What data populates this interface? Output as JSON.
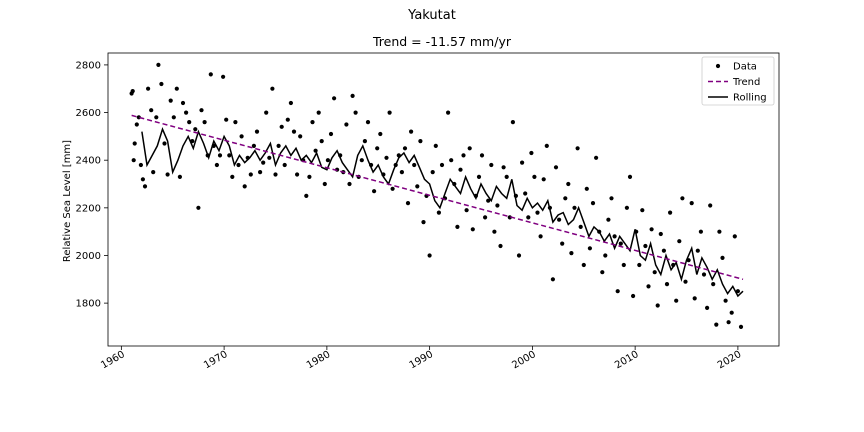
{
  "chart_data": {
    "type": "scatter",
    "suptitle": "Yakutat",
    "title": "Trend = -11.57 mm/yr",
    "xlabel": "",
    "ylabel": "Relative Sea Level [mm]",
    "xlim": [
      1958.7,
      2024.0
    ],
    "ylim": [
      1620,
      2850
    ],
    "xticks": [
      1960,
      1970,
      1980,
      1990,
      2000,
      2010,
      2020
    ],
    "xtick_labels": [
      "1960",
      "1970",
      "1980",
      "1990",
      "2000",
      "2010",
      "2020"
    ],
    "yticks": [
      1800,
      2000,
      2200,
      2400,
      2600,
      2800
    ],
    "ytick_labels": [
      "1800",
      "2000",
      "2200",
      "2400",
      "2600",
      "2800"
    ],
    "legend_position": "top-right",
    "series": [
      {
        "name": "Data",
        "kind": "points",
        "color": "#000000",
        "x": [
          1961.0,
          1961.1,
          1961.2,
          1961.3,
          1961.5,
          1961.7,
          1961.9,
          1962.1,
          1962.3,
          1962.6,
          1962.9,
          1963.1,
          1963.4,
          1963.6,
          1963.9,
          1964.2,
          1964.5,
          1964.8,
          1965.1,
          1965.4,
          1965.7,
          1966.0,
          1966.3,
          1966.6,
          1966.9,
          1967.2,
          1967.5,
          1967.8,
          1968.1,
          1968.4,
          1968.7,
          1969.0,
          1969.3,
          1969.6,
          1969.9,
          1970.2,
          1970.5,
          1970.8,
          1971.1,
          1971.4,
          1971.7,
          1972.0,
          1972.3,
          1972.6,
          1972.9,
          1973.2,
          1973.5,
          1973.8,
          1974.1,
          1974.4,
          1974.7,
          1975.0,
          1975.3,
          1975.6,
          1975.9,
          1976.2,
          1976.5,
          1976.8,
          1977.1,
          1977.4,
          1977.7,
          1978.0,
          1978.3,
          1978.6,
          1978.9,
          1979.2,
          1979.5,
          1979.8,
          1980.1,
          1980.4,
          1980.7,
          1981.0,
          1981.3,
          1981.6,
          1981.9,
          1982.2,
          1982.5,
          1982.8,
          1983.1,
          1983.4,
          1983.7,
          1984.0,
          1984.3,
          1984.6,
          1984.9,
          1985.2,
          1985.5,
          1985.8,
          1986.1,
          1986.4,
          1986.7,
          1987.0,
          1987.3,
          1987.6,
          1987.9,
          1988.2,
          1988.5,
          1988.8,
          1989.1,
          1989.4,
          1989.7,
          1990.0,
          1990.3,
          1990.6,
          1990.9,
          1991.2,
          1991.5,
          1991.8,
          1992.1,
          1992.4,
          1992.7,
          1993.0,
          1993.3,
          1993.6,
          1993.9,
          1994.2,
          1994.5,
          1994.8,
          1995.1,
          1995.4,
          1995.7,
          1996.0,
          1996.3,
          1996.6,
          1996.9,
          1997.2,
          1997.5,
          1997.8,
          1998.1,
          1998.4,
          1998.7,
          1999.0,
          1999.3,
          1999.6,
          1999.9,
          2000.2,
          2000.5,
          2000.8,
          2001.1,
          2001.4,
          2001.7,
          2002.0,
          2002.3,
          2002.6,
          2002.9,
          2003.2,
          2003.5,
          2003.8,
          2004.1,
          2004.4,
          2004.7,
          2005.0,
          2005.3,
          2005.6,
          2005.9,
          2006.2,
          2006.5,
          2006.8,
          2007.1,
          2007.4,
          2007.7,
          2008.0,
          2008.3,
          2008.6,
          2008.9,
          2009.2,
          2009.5,
          2009.8,
          2010.1,
          2010.4,
          2010.7,
          2011.0,
          2011.3,
          2011.6,
          2011.9,
          2012.2,
          2012.5,
          2012.8,
          2013.1,
          2013.4,
          2013.7,
          2014.0,
          2014.3,
          2014.6,
          2014.9,
          2015.2,
          2015.5,
          2015.8,
          2016.1,
          2016.4,
          2016.7,
          2017.0,
          2017.3,
          2017.6,
          2017.9,
          2018.2,
          2018.5,
          2018.8,
          2019.1,
          2019.4,
          2019.7,
          2020.0,
          2020.3
        ],
        "y": [
          2680,
          2690,
          2400,
          2470,
          2550,
          2580,
          2380,
          2320,
          2290,
          2700,
          2610,
          2350,
          2580,
          2800,
          2720,
          2470,
          2340,
          2650,
          2580,
          2700,
          2330,
          2640,
          2600,
          2560,
          2480,
          2530,
          2200,
          2610,
          2560,
          2420,
          2760,
          2460,
          2380,
          2420,
          2750,
          2570,
          2420,
          2330,
          2560,
          2380,
          2500,
          2290,
          2410,
          2340,
          2460,
          2520,
          2350,
          2390,
          2600,
          2410,
          2700,
          2340,
          2460,
          2540,
          2380,
          2570,
          2640,
          2520,
          2340,
          2500,
          2400,
          2250,
          2330,
          2560,
          2440,
          2600,
          2480,
          2300,
          2400,
          2510,
          2660,
          2360,
          2420,
          2350,
          2550,
          2300,
          2670,
          2600,
          2330,
          2400,
          2480,
          2560,
          2380,
          2270,
          2450,
          2510,
          2340,
          2410,
          2600,
          2280,
          2380,
          2420,
          2350,
          2450,
          2220,
          2520,
          2380,
          2290,
          2480,
          2140,
          2250,
          2000,
          2350,
          2460,
          2180,
          2380,
          2240,
          2600,
          2400,
          2300,
          2120,
          2360,
          2420,
          2190,
          2450,
          2110,
          2250,
          2330,
          2420,
          2160,
          2230,
          2380,
          2100,
          2210,
          2040,
          2370,
          2330,
          2160,
          2560,
          2250,
          2000,
          2390,
          2260,
          2160,
          2430,
          2330,
          2180,
          2080,
          2320,
          2460,
          2200,
          1900,
          2370,
          2150,
          2050,
          2240,
          2300,
          2010,
          2200,
          2450,
          2120,
          1960,
          2280,
          2030,
          2220,
          2410,
          2100,
          1930,
          2000,
          2150,
          2240,
          2080,
          1850,
          2050,
          1960,
          2200,
          2330,
          1830,
          2100,
          1960,
          2190,
          2040,
          1870,
          2110,
          1930,
          1790,
          2090,
          2020,
          1880,
          2180,
          1960,
          1810,
          2060,
          2240,
          1890,
          1980,
          2220,
          1820,
          2020,
          2100,
          1920,
          1780,
          2210,
          1880,
          1710,
          2100,
          1990,
          1810,
          1720,
          1760,
          2080,
          1850,
          1700
        ]
      },
      {
        "name": "Trend",
        "kind": "line",
        "color": "#800080",
        "dashed": true,
        "x": [
          1961.0,
          2020.5
        ],
        "y": [
          2588,
          1900
        ]
      },
      {
        "name": "Rolling",
        "kind": "line",
        "color": "#000000",
        "x": [
          1962.0,
          1962.5,
          1963.0,
          1963.5,
          1964.0,
          1964.5,
          1965.0,
          1965.5,
          1966.0,
          1966.5,
          1967.0,
          1967.5,
          1968.0,
          1968.5,
          1969.0,
          1969.5,
          1970.0,
          1970.5,
          1971.0,
          1971.5,
          1972.0,
          1972.5,
          1973.0,
          1973.5,
          1974.0,
          1974.5,
          1975.0,
          1975.5,
          1976.0,
          1976.5,
          1977.0,
          1977.5,
          1978.0,
          1978.5,
          1979.0,
          1979.5,
          1980.0,
          1980.5,
          1981.0,
          1981.5,
          1982.0,
          1982.5,
          1983.0,
          1983.5,
          1984.0,
          1984.5,
          1985.0,
          1985.5,
          1986.0,
          1986.5,
          1987.0,
          1987.5,
          1988.0,
          1988.5,
          1989.0,
          1989.5,
          1990.0,
          1990.5,
          1991.0,
          1991.5,
          1992.0,
          1992.5,
          1993.0,
          1993.5,
          1994.0,
          1994.5,
          1995.0,
          1995.5,
          1996.0,
          1996.5,
          1997.0,
          1997.5,
          1998.0,
          1998.5,
          1999.0,
          1999.5,
          2000.0,
          2000.5,
          2001.0,
          2001.5,
          2002.0,
          2002.5,
          2003.0,
          2003.5,
          2004.0,
          2004.5,
          2005.0,
          2005.5,
          2006.0,
          2006.5,
          2007.0,
          2007.5,
          2008.0,
          2008.5,
          2009.0,
          2009.5,
          2010.0,
          2010.5,
          2011.0,
          2011.5,
          2012.0,
          2012.5,
          2013.0,
          2013.5,
          2014.0,
          2014.5,
          2015.0,
          2015.5,
          2016.0,
          2016.5,
          2017.0,
          2017.5,
          2018.0,
          2018.5,
          2019.0,
          2019.5,
          2020.0,
          2020.5
        ],
        "y": [
          2520,
          2380,
          2420,
          2460,
          2530,
          2480,
          2350,
          2400,
          2460,
          2500,
          2450,
          2520,
          2470,
          2410,
          2480,
          2440,
          2500,
          2460,
          2380,
          2420,
          2390,
          2410,
          2440,
          2400,
          2430,
          2470,
          2380,
          2430,
          2460,
          2420,
          2450,
          2400,
          2420,
          2390,
          2430,
          2370,
          2360,
          2410,
          2440,
          2390,
          2360,
          2330,
          2420,
          2460,
          2400,
          2350,
          2380,
          2330,
          2300,
          2360,
          2410,
          2430,
          2390,
          2420,
          2370,
          2320,
          2300,
          2230,
          2200,
          2260,
          2320,
          2290,
          2260,
          2330,
          2280,
          2240,
          2300,
          2260,
          2230,
          2290,
          2260,
          2240,
          2320,
          2210,
          2190,
          2240,
          2200,
          2220,
          2190,
          2230,
          2140,
          2170,
          2180,
          2130,
          2150,
          2200,
          2140,
          2080,
          2120,
          2100,
          2060,
          2090,
          2030,
          2080,
          2050,
          2020,
          2110,
          2000,
          1980,
          2050,
          1960,
          1920,
          2000,
          1940,
          1970,
          1900,
          1980,
          2030,
          1920,
          1990,
          1950,
          1900,
          1940,
          1880,
          1840,
          1870,
          1830,
          1850
        ]
      }
    ]
  }
}
